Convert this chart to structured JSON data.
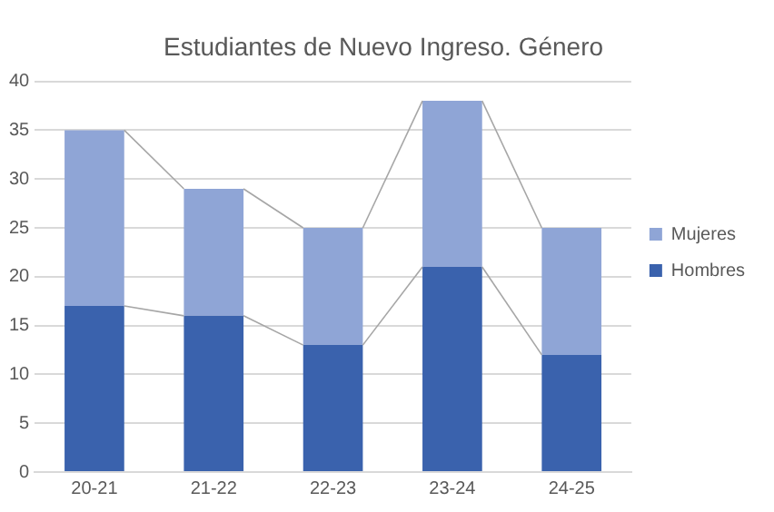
{
  "chart_data": {
    "type": "bar",
    "title": "Estudiantes de Nuevo Ingreso. Género",
    "categories": [
      "20-21",
      "21-22",
      "22-23",
      "23-24",
      "24-25"
    ],
    "series": [
      {
        "name": "Hombres",
        "color": "#3a62ad",
        "values": [
          17,
          16,
          13,
          21,
          12
        ]
      },
      {
        "name": "Mujeres",
        "color": "#8fa5d6",
        "values": [
          18,
          13,
          12,
          17,
          13
        ]
      }
    ],
    "stacked": true,
    "ylim": [
      0,
      40
    ],
    "yticks": [
      0,
      5,
      10,
      15,
      20,
      25,
      30,
      35,
      40
    ],
    "grid": "y",
    "legend": "right"
  }
}
